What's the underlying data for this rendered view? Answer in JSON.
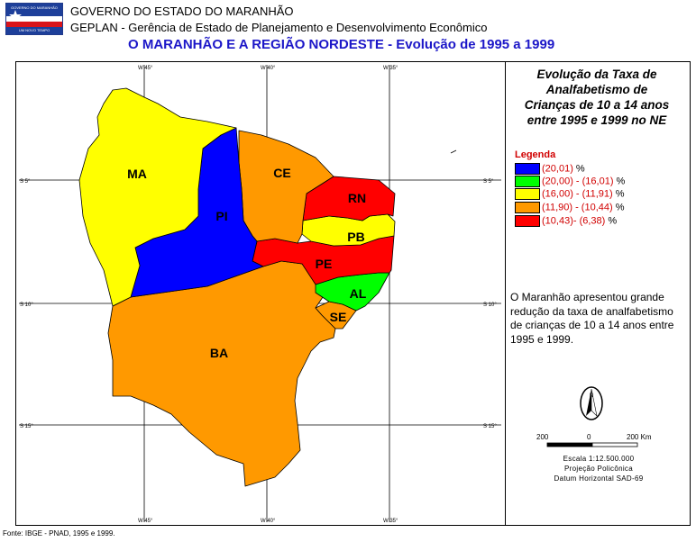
{
  "header": {
    "line1": "GOVERNO DO ESTADO DO MARANHÃO",
    "line2": "GEPLAN - Gerência de Estado de Planejamento e Desenvolvimento Econômico",
    "line3": "O MARANHÃO E A REGIÃO NORDESTE - Evolução de 1995 a 1999"
  },
  "logo": {
    "top_text": "GOVERNO DO MARANHÃO",
    "bottom_text": "UM NOVO TEMPO"
  },
  "side": {
    "title_lines": [
      "Evolução da Taxa de",
      "Analfabetismo de",
      "Crianças de 10 a 14 anos",
      "entre 1995 e 1999 no NE"
    ],
    "legend_title": "Legenda",
    "legend": [
      {
        "label": "(20,01)",
        "suffix": "%",
        "color": "#0000ff"
      },
      {
        "label": "(20,00) - (16,01)",
        "suffix": "%",
        "color": "#00ff00"
      },
      {
        "label": "(16,00) - (11,91)",
        "suffix": "%",
        "color": "#ffff00"
      },
      {
        "label": "(11,90) - (10,44)",
        "suffix": "%",
        "color": "#ff9900"
      },
      {
        "label": "(10,43)-  (6,38)",
        "suffix": "%",
        "color": "#ff0000"
      }
    ],
    "note": "O Maranhão apresentou grande redução da taxa de analfabetismo de crianças de 10 a 14 anos entre 1995 e 1999."
  },
  "map": {
    "coords_top": [
      "W 45°",
      "W 40°",
      "W 35°"
    ],
    "coords_bottom": [
      "W 45°",
      "W 40°",
      "W 35°"
    ],
    "coords_left": [
      "S 5°",
      "S 10°",
      "S 15°"
    ],
    "coords_right": [
      "S 5°",
      "S 10°",
      "S 15°"
    ],
    "states": [
      {
        "abbr": "MA",
        "color": "#ffff00"
      },
      {
        "abbr": "PI",
        "color": "#0000ff"
      },
      {
        "abbr": "CE",
        "color": "#ff9900"
      },
      {
        "abbr": "RN",
        "color": "#ff0000"
      },
      {
        "abbr": "PB",
        "color": "#ffff00"
      },
      {
        "abbr": "PE",
        "color": "#ff0000"
      },
      {
        "abbr": "AL",
        "color": "#00ff00"
      },
      {
        "abbr": "SE",
        "color": "#ff9900"
      },
      {
        "abbr": "BA",
        "color": "#ff9900"
      }
    ],
    "north_arrow": "N"
  },
  "scale": {
    "ticks": [
      "200",
      "0",
      "200 Km"
    ],
    "line1": "Escala 1:12.500.000",
    "line2": "Projeção Policônica",
    "line3": "Datum Horizontal SAD-69"
  },
  "source": "Fonte: IBGE - PNAD, 1995 e 1999."
}
